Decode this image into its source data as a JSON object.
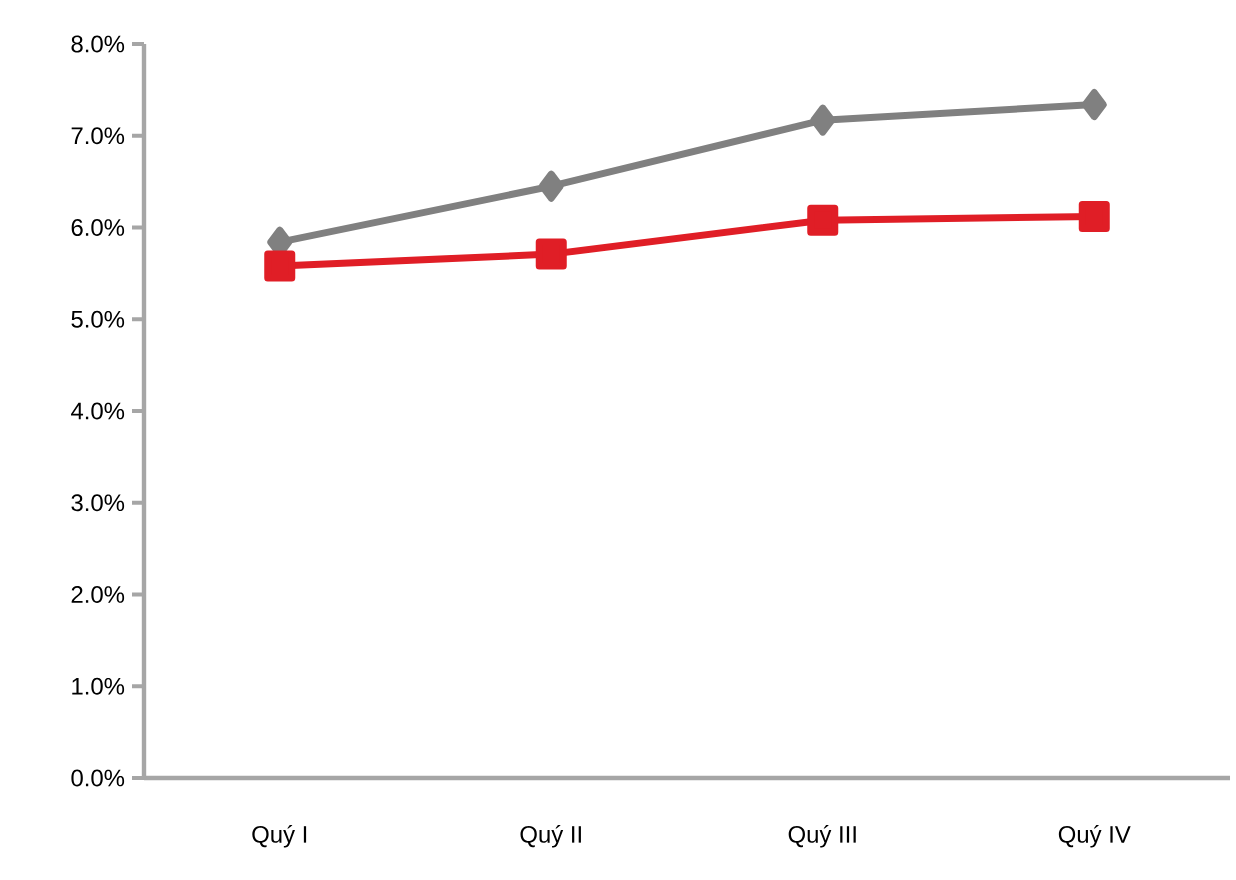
{
  "chart_data": {
    "type": "line",
    "categories": [
      "Quý I",
      "Quý II",
      "Quý III",
      "Quý IV"
    ],
    "series": [
      {
        "color": "#808080",
        "marker": "diamond",
        "values": [
          5.84,
          6.45,
          7.17,
          7.34
        ]
      },
      {
        "color": "#e01e26",
        "marker": "square",
        "values": [
          5.58,
          5.71,
          6.08,
          6.12
        ]
      }
    ],
    "ylim": [
      0,
      8
    ],
    "yticks": [
      {
        "value": 0,
        "label": "0.0%"
      },
      {
        "value": 1,
        "label": "1.0%"
      },
      {
        "value": 2,
        "label": "2.0%"
      },
      {
        "value": 3,
        "label": "3.0%"
      },
      {
        "value": 4,
        "label": "4.0%"
      },
      {
        "value": 5,
        "label": "5.0%"
      },
      {
        "value": 6,
        "label": "6.0%"
      },
      {
        "value": 7,
        "label": "7.0%"
      },
      {
        "value": 8,
        "label": "8.0%"
      }
    ],
    "line_style": "solid"
  }
}
